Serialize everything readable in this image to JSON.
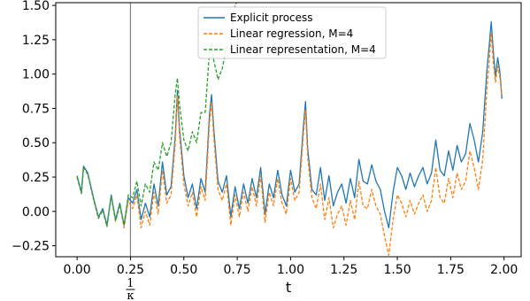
{
  "chart_data": {
    "type": "line",
    "title": "",
    "xlabel": "t",
    "ylabel": "",
    "xlim": [
      -0.1,
      2.08
    ],
    "ylim": [
      -0.33,
      1.52
    ],
    "x_ticks": [
      0.0,
      0.25,
      0.5,
      0.75,
      1.0,
      1.25,
      1.5,
      1.75,
      2.0
    ],
    "x_tick_labels": [
      "0.00",
      "0.25",
      "0.50",
      "0.75",
      "1.00",
      "1.25",
      "1.50",
      "1.75",
      "2.00"
    ],
    "y_ticks": [
      -0.25,
      0.0,
      0.25,
      0.5,
      0.75,
      1.0,
      1.25,
      1.5
    ],
    "y_tick_labels": [
      "−0.25",
      "0.00",
      "0.25",
      "0.50",
      "0.75",
      "1.00",
      "1.25",
      "1.50"
    ],
    "grid": false,
    "legend_position": "top-center",
    "annotations": [
      {
        "type": "vline",
        "x": 0.25,
        "color": "#808080",
        "label_num": "1",
        "label_den": "κ"
      }
    ],
    "series": [
      {
        "name": "Explicit process",
        "color": "#1f77b4",
        "style": "solid",
        "x": [
          0.0,
          0.02,
          0.03,
          0.05,
          0.08,
          0.1,
          0.12,
          0.14,
          0.16,
          0.18,
          0.2,
          0.22,
          0.24,
          0.26,
          0.28,
          0.3,
          0.32,
          0.34,
          0.36,
          0.38,
          0.4,
          0.42,
          0.44,
          0.46,
          0.47,
          0.48,
          0.5,
          0.52,
          0.54,
          0.56,
          0.58,
          0.6,
          0.62,
          0.63,
          0.64,
          0.66,
          0.68,
          0.7,
          0.72,
          0.74,
          0.76,
          0.78,
          0.8,
          0.82,
          0.84,
          0.86,
          0.88,
          0.9,
          0.92,
          0.94,
          0.96,
          0.98,
          1.0,
          1.02,
          1.04,
          1.06,
          1.07,
          1.08,
          1.1,
          1.12,
          1.14,
          1.16,
          1.18,
          1.2,
          1.22,
          1.24,
          1.26,
          1.28,
          1.3,
          1.32,
          1.34,
          1.36,
          1.38,
          1.4,
          1.42,
          1.44,
          1.46,
          1.48,
          1.5,
          1.52,
          1.54,
          1.56,
          1.58,
          1.6,
          1.62,
          1.64,
          1.66,
          1.68,
          1.7,
          1.72,
          1.74,
          1.76,
          1.78,
          1.8,
          1.82,
          1.84,
          1.86,
          1.88,
          1.9,
          1.92,
          1.93,
          1.94,
          1.95,
          1.96,
          1.97,
          1.98,
          1.99
        ],
        "y": [
          0.26,
          0.14,
          0.33,
          0.28,
          0.08,
          -0.04,
          0.02,
          -0.1,
          0.12,
          -0.06,
          0.06,
          -0.1,
          0.1,
          0.06,
          0.16,
          -0.06,
          0.06,
          -0.04,
          0.2,
          0.04,
          0.36,
          0.12,
          0.18,
          0.55,
          0.88,
          0.6,
          0.26,
          0.1,
          0.2,
          0.02,
          0.24,
          0.14,
          0.7,
          0.85,
          0.6,
          0.22,
          0.14,
          0.26,
          -0.04,
          0.18,
          0.02,
          0.2,
          0.06,
          0.24,
          0.1,
          0.32,
          -0.02,
          0.2,
          0.1,
          0.3,
          0.12,
          0.04,
          0.3,
          0.14,
          0.2,
          0.62,
          0.8,
          0.46,
          0.16,
          0.12,
          0.32,
          0.08,
          0.26,
          0.04,
          0.14,
          0.2,
          0.06,
          0.24,
          0.1,
          0.38,
          0.22,
          0.2,
          0.34,
          0.22,
          0.16,
          0.0,
          -0.12,
          0.14,
          0.32,
          0.26,
          0.16,
          0.28,
          0.18,
          0.26,
          0.32,
          0.2,
          0.28,
          0.52,
          0.3,
          0.26,
          0.44,
          0.3,
          0.48,
          0.36,
          0.42,
          0.64,
          0.52,
          0.36,
          0.58,
          1.04,
          1.2,
          1.38,
          1.16,
          0.98,
          1.12,
          1.02,
          0.82
        ]
      },
      {
        "name": "Linear regression, M=4",
        "color": "#ff7f0e",
        "style": "dashed",
        "x": [
          0.0,
          0.02,
          0.03,
          0.05,
          0.08,
          0.1,
          0.12,
          0.14,
          0.16,
          0.18,
          0.2,
          0.22,
          0.24,
          0.26,
          0.28,
          0.3,
          0.32,
          0.34,
          0.36,
          0.38,
          0.4,
          0.42,
          0.44,
          0.46,
          0.47,
          0.48,
          0.5,
          0.52,
          0.54,
          0.56,
          0.58,
          0.6,
          0.62,
          0.63,
          0.64,
          0.66,
          0.68,
          0.7,
          0.72,
          0.74,
          0.76,
          0.78,
          0.8,
          0.82,
          0.84,
          0.86,
          0.88,
          0.9,
          0.92,
          0.94,
          0.96,
          0.98,
          1.0,
          1.02,
          1.04,
          1.06,
          1.07,
          1.08,
          1.1,
          1.12,
          1.14,
          1.16,
          1.18,
          1.2,
          1.22,
          1.24,
          1.26,
          1.28,
          1.3,
          1.32,
          1.34,
          1.36,
          1.38,
          1.4,
          1.42,
          1.44,
          1.46,
          1.48,
          1.5,
          1.52,
          1.54,
          1.56,
          1.58,
          1.6,
          1.62,
          1.64,
          1.66,
          1.68,
          1.7,
          1.72,
          1.74,
          1.76,
          1.78,
          1.8,
          1.82,
          1.84,
          1.86,
          1.88,
          1.9,
          1.92,
          1.93,
          1.94,
          1.95,
          1.96,
          1.97,
          1.98,
          1.99
        ],
        "y": [
          0.25,
          0.13,
          0.32,
          0.27,
          0.07,
          -0.05,
          0.01,
          -0.11,
          0.11,
          -0.07,
          0.05,
          -0.12,
          0.08,
          0.02,
          0.12,
          -0.12,
          0.0,
          -0.1,
          0.14,
          -0.02,
          0.3,
          0.06,
          0.12,
          0.5,
          0.84,
          0.55,
          0.2,
          0.04,
          0.14,
          -0.04,
          0.18,
          0.08,
          0.64,
          0.8,
          0.54,
          0.16,
          0.08,
          0.2,
          -0.1,
          0.12,
          -0.04,
          0.14,
          0.0,
          0.18,
          0.04,
          0.26,
          -0.08,
          0.14,
          0.04,
          0.24,
          0.06,
          -0.02,
          0.24,
          0.08,
          0.14,
          0.56,
          0.74,
          0.4,
          0.1,
          0.02,
          0.2,
          -0.06,
          0.1,
          -0.12,
          -0.02,
          0.04,
          -0.1,
          0.08,
          -0.06,
          0.22,
          0.04,
          0.02,
          0.16,
          0.04,
          -0.02,
          -0.18,
          -0.32,
          -0.06,
          0.12,
          0.06,
          -0.04,
          0.08,
          -0.02,
          0.06,
          0.12,
          0.0,
          0.08,
          0.32,
          0.1,
          0.06,
          0.24,
          0.1,
          0.28,
          0.16,
          0.22,
          0.44,
          0.32,
          0.16,
          0.38,
          0.9,
          1.08,
          1.3,
          1.08,
          0.94,
          1.06,
          0.98,
          0.84
        ]
      },
      {
        "name": "Linear representation, M=4",
        "color": "#2ca02c",
        "style": "dashed",
        "x": [
          0.0,
          0.02,
          0.03,
          0.05,
          0.08,
          0.1,
          0.12,
          0.14,
          0.16,
          0.18,
          0.2,
          0.22,
          0.24,
          0.26,
          0.28,
          0.3,
          0.32,
          0.34,
          0.36,
          0.38,
          0.4,
          0.42,
          0.44,
          0.46,
          0.47,
          0.48,
          0.5,
          0.52,
          0.54,
          0.56,
          0.58,
          0.6,
          0.62,
          0.63,
          0.64,
          0.66,
          0.68,
          0.7,
          0.72,
          0.73,
          0.74,
          0.76
        ],
        "y": [
          0.25,
          0.13,
          0.32,
          0.27,
          0.07,
          -0.05,
          0.01,
          -0.11,
          0.11,
          -0.07,
          0.05,
          -0.1,
          0.12,
          0.1,
          0.22,
          0.04,
          0.2,
          0.14,
          0.36,
          0.3,
          0.5,
          0.4,
          0.5,
          0.86,
          0.97,
          0.78,
          0.52,
          0.44,
          0.58,
          0.5,
          0.72,
          0.72,
          1.16,
          1.22,
          1.1,
          0.96,
          1.04,
          1.2,
          1.18,
          1.4,
          1.5,
          1.56
        ]
      }
    ]
  }
}
